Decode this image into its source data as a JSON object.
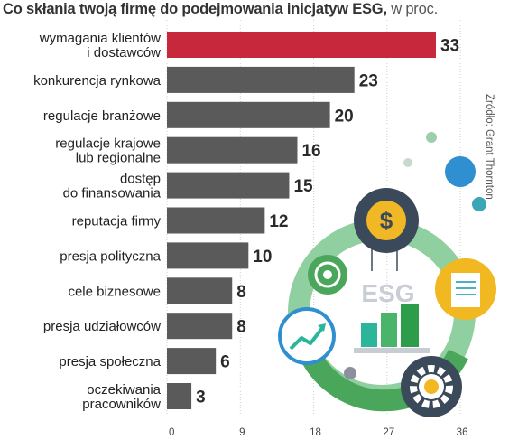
{
  "title": "Co skłania twoją firmę do podejmowania inicjatyw ESG,",
  "title_unit": "w proc.",
  "source": "Źródło: Grant Thornton",
  "illustration_label": "ESG",
  "chart_data": {
    "type": "bar",
    "orientation": "horizontal",
    "categories": [
      [
        "wymagania klientów",
        "i dostawców"
      ],
      [
        "konkurencja rynkowa"
      ],
      [
        "regulacje branżowe"
      ],
      [
        "regulacje krajowe",
        "lub regionalne"
      ],
      [
        "dostęp",
        "do finansowania"
      ],
      [
        "reputacja firmy"
      ],
      [
        "presja polityczna"
      ],
      [
        "cele biznesowe"
      ],
      [
        "presja udziałowców"
      ],
      [
        "presja społeczna"
      ],
      [
        "oczekiwania",
        "pracowników"
      ]
    ],
    "values": [
      33,
      23,
      20,
      16,
      15,
      12,
      10,
      8,
      8,
      6,
      3
    ],
    "xlim": [
      0,
      36
    ],
    "xticks": [
      0,
      9,
      18,
      27,
      36
    ],
    "grid": true,
    "colors": {
      "highlight": "#c8283c",
      "bar": "#5a5a5a",
      "grid": "#cfcfcf"
    }
  }
}
